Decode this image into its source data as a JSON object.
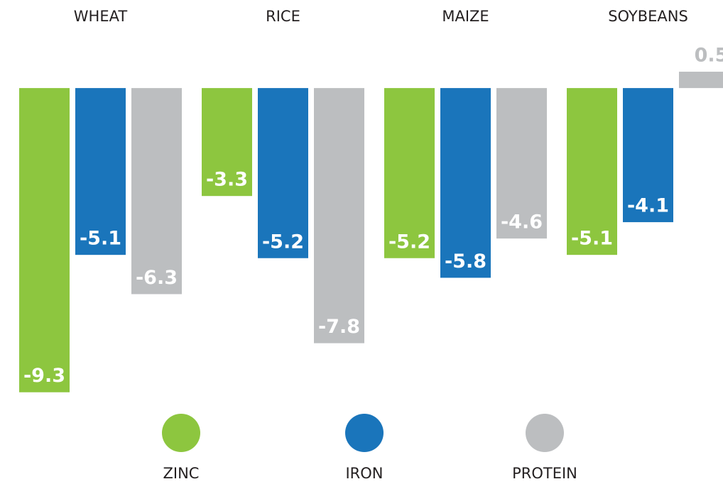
{
  "chart_data": {
    "type": "bar",
    "categories": [
      "WHEAT",
      "RICE",
      "MAIZE",
      "SOYBEANS"
    ],
    "series": [
      {
        "name": "ZINC",
        "color": "#8dc63f",
        "values": [
          -9.3,
          -3.3,
          -5.2,
          -5.1
        ]
      },
      {
        "name": "IRON",
        "color": "#1a75bb",
        "values": [
          -5.1,
          -5.2,
          -5.8,
          -4.1
        ]
      },
      {
        "name": "PROTEIN",
        "color": "#bcbec0",
        "values": [
          -6.3,
          -7.8,
          -4.6,
          0.5
        ]
      }
    ],
    "ylim": [
      -10,
      1
    ]
  }
}
